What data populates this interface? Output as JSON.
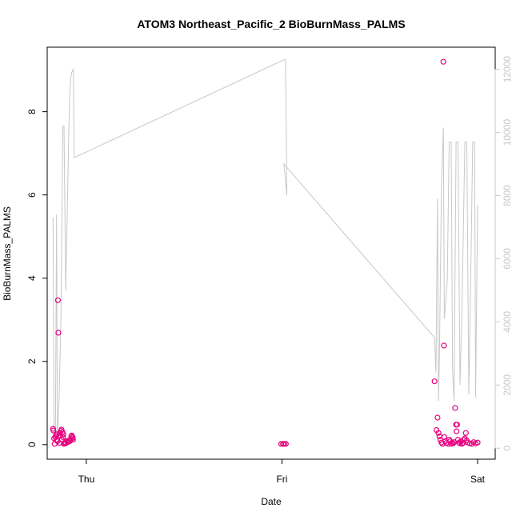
{
  "chart_data": {
    "type": "scatter",
    "title": "ATOM3 Northeast_Pacific_2 BioBurnMass_PALMS",
    "xlabel": "Date",
    "ylabel": "BioBurnMass_PALMS",
    "x_ticks": [
      {
        "label": "Thu",
        "value": 0
      },
      {
        "label": "Fri",
        "value": 1
      },
      {
        "label": "Sat",
        "value": 2
      }
    ],
    "xlim": [
      -0.2,
      2.09
    ],
    "ylim_left": [
      -0.35,
      9.55
    ],
    "yticks_left": [
      "0",
      "2",
      "4",
      "6",
      "8"
    ],
    "ylim_right": [
      -350,
      12700
    ],
    "yticks_right": [
      "0",
      "2000",
      "4000",
      "6000",
      "8000",
      "10000",
      "12000"
    ],
    "grid": false,
    "colors": {
      "points": "#e8007e",
      "altitude_line": "#c8c8c8",
      "axis": "#000000",
      "right_axis": "#c8c8c8"
    },
    "series": [
      {
        "axis": "left",
        "style": "points",
        "points": [
          [
            -0.17,
            0.38
          ],
          [
            -0.168,
            0.34
          ],
          [
            -0.165,
            0.15
          ],
          [
            -0.162,
            0.02
          ],
          [
            -0.158,
            0.18
          ],
          [
            -0.155,
            0.22
          ],
          [
            -0.152,
            0.1
          ],
          [
            -0.15,
            0.25
          ],
          [
            -0.147,
            0.08
          ],
          [
            -0.145,
            3.47
          ],
          [
            -0.143,
            2.69
          ],
          [
            -0.14,
            0.2
          ],
          [
            -0.138,
            0.04
          ],
          [
            -0.135,
            0.28
          ],
          [
            -0.132,
            0.22
          ],
          [
            -0.13,
            0.33
          ],
          [
            -0.127,
            0.36
          ],
          [
            -0.125,
            0.12
          ],
          [
            -0.122,
            0.3
          ],
          [
            -0.12,
            0.18
          ],
          [
            -0.117,
            0.25
          ],
          [
            -0.115,
            0.02
          ],
          [
            -0.112,
            0.04
          ],
          [
            -0.108,
            0.06
          ],
          [
            -0.105,
            0.03
          ],
          [
            -0.1,
            0.08
          ],
          [
            -0.095,
            0.06
          ],
          [
            -0.09,
            0.1
          ],
          [
            -0.085,
            0.08
          ],
          [
            -0.08,
            0.12
          ],
          [
            -0.077,
            0.2
          ],
          [
            -0.075,
            0.22
          ],
          [
            -0.072,
            0.15
          ],
          [
            -0.07,
            0.18
          ],
          [
            -0.068,
            0.12
          ],
          [
            0.996,
            0.02
          ],
          [
            1.005,
            0.02
          ],
          [
            1.012,
            0.02
          ],
          [
            1.02,
            0.02
          ],
          [
            1.78,
            1.52
          ],
          [
            1.79,
            0.35
          ],
          [
            1.795,
            0.65
          ],
          [
            1.8,
            0.28
          ],
          [
            1.805,
            0.2
          ],
          [
            1.81,
            0.12
          ],
          [
            1.815,
            0.05
          ],
          [
            1.82,
            0.02
          ],
          [
            1.825,
            9.2
          ],
          [
            1.828,
            2.38
          ],
          [
            1.83,
            0.18
          ],
          [
            1.835,
            0.08
          ],
          [
            1.84,
            0.04
          ],
          [
            1.85,
            0.02
          ],
          [
            1.855,
            0.12
          ],
          [
            1.86,
            0.08
          ],
          [
            1.865,
            0.02
          ],
          [
            1.87,
            0.05
          ],
          [
            1.875,
            0.03
          ],
          [
            1.88,
            0.06
          ],
          [
            1.885,
            0.88
          ],
          [
            1.89,
            0.48
          ],
          [
            1.892,
            0.32
          ],
          [
            1.895,
            0.48
          ],
          [
            1.9,
            0.12
          ],
          [
            1.905,
            0.05
          ],
          [
            1.91,
            0.03
          ],
          [
            1.915,
            0.08
          ],
          [
            1.92,
            0.02
          ],
          [
            1.925,
            0.04
          ],
          [
            1.93,
            0.12
          ],
          [
            1.935,
            0.15
          ],
          [
            1.94,
            0.28
          ],
          [
            1.945,
            0.1
          ],
          [
            1.95,
            0.05
          ],
          [
            1.96,
            0.03
          ],
          [
            1.97,
            0.02
          ],
          [
            1.98,
            0.06
          ],
          [
            1.99,
            0.03
          ],
          [
            2.0,
            0.05
          ]
        ]
      },
      {
        "axis": "right",
        "style": "line",
        "points": [
          [
            -0.17,
            7300
          ],
          [
            -0.165,
            600
          ],
          [
            -0.158,
            250
          ],
          [
            -0.152,
            7400
          ],
          [
            -0.148,
            400
          ],
          [
            -0.14,
            1400
          ],
          [
            -0.13,
            4000
          ],
          [
            -0.12,
            10200
          ],
          [
            -0.114,
            10200
          ],
          [
            -0.105,
            5000
          ],
          [
            -0.09,
            9900
          ],
          [
            -0.085,
            11200
          ],
          [
            -0.08,
            11700
          ],
          [
            -0.075,
            11900
          ],
          [
            -0.066,
            12000
          ],
          [
            -0.062,
            9200
          ],
          [
            1.01,
            12300
          ],
          [
            1.018,
            12300
          ],
          [
            1.025,
            8000
          ],
          [
            1.01,
            9000
          ],
          [
            1.78,
            3500
          ],
          [
            1.787,
            2400
          ],
          [
            1.795,
            7900
          ],
          [
            1.8,
            1500
          ],
          [
            1.805,
            2900
          ],
          [
            1.815,
            8300
          ],
          [
            1.825,
            10150
          ],
          [
            1.83,
            4100
          ],
          [
            1.845,
            5300
          ],
          [
            1.855,
            9700
          ],
          [
            1.865,
            9700
          ],
          [
            1.872,
            2500
          ],
          [
            1.88,
            1500
          ],
          [
            1.89,
            9700
          ],
          [
            1.9,
            9700
          ],
          [
            1.91,
            2000
          ],
          [
            1.92,
            4300
          ],
          [
            1.935,
            9700
          ],
          [
            1.945,
            9700
          ],
          [
            1.955,
            1700
          ],
          [
            1.965,
            5400
          ],
          [
            1.975,
            9700
          ],
          [
            1.985,
            9700
          ],
          [
            1.99,
            1600
          ],
          [
            2.0,
            7700
          ]
        ]
      }
    ]
  }
}
